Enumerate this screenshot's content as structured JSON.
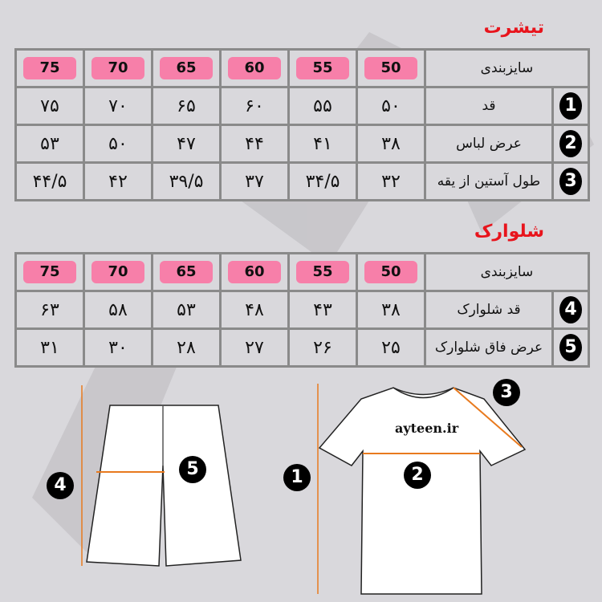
{
  "tshirt": {
    "title": "تیشرت",
    "size_label": "سایزبندی",
    "sizes": [
      "75",
      "70",
      "65",
      "60",
      "55",
      "50"
    ],
    "rows": [
      {
        "num": "1",
        "label": "قد",
        "values": [
          "۷۵",
          "۷۰",
          "۶۵",
          "۶۰",
          "۵۵",
          "۵۰"
        ]
      },
      {
        "num": "2",
        "label": "عرض لباس",
        "values": [
          "۵۳",
          "۵۰",
          "۴۷",
          "۴۴",
          "۴۱",
          "۳۸"
        ]
      },
      {
        "num": "3",
        "label": "طول آستین از یقه",
        "values": [
          "۴۴/۵",
          "۴۲",
          "۳۹/۵",
          "۳۷",
          "۳۴/۵",
          "۳۲"
        ]
      }
    ]
  },
  "shorts": {
    "title": "شلوارک",
    "size_label": "سایزبندی",
    "sizes": [
      "75",
      "70",
      "65",
      "60",
      "55",
      "50"
    ],
    "rows": [
      {
        "num": "4",
        "label": "قد شلوارک",
        "values": [
          "۶۳",
          "۵۸",
          "۵۳",
          "۴۸",
          "۴۳",
          "۳۸"
        ]
      },
      {
        "num": "5",
        "label": "عرض فاق شلوارک",
        "values": [
          "۳۱",
          "۳۰",
          "۲۸",
          "۲۷",
          "۲۶",
          "۲۵"
        ]
      }
    ]
  },
  "diagram": {
    "markers": [
      "1",
      "2",
      "3",
      "4",
      "5"
    ],
    "brand": "ayteen.ir",
    "size_color": "#f77fa9",
    "title_color": "#e8141c",
    "measure_color": "#e87a1e"
  }
}
